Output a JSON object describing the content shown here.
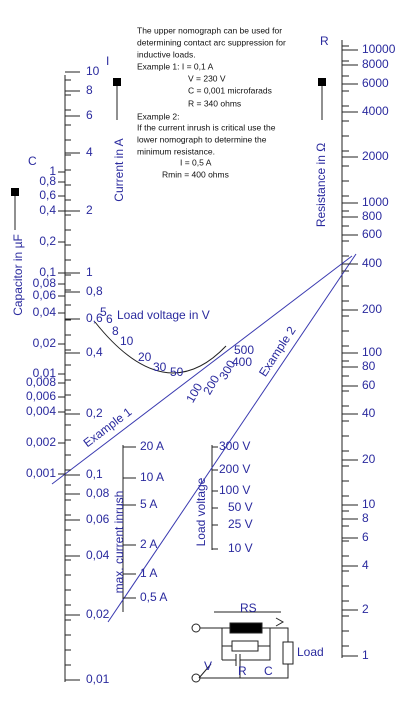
{
  "notes": [
    "The upper nomograph  can be used for",
    "determining contact arc suppression for",
    "inductive loads.",
    "Example 1:   I   =  0,1 A",
    "V  =  230 V",
    "C  =  0,001 microfarads",
    "R  =  340 ohms",
    "Example 2:",
    "If the current inrush is critical use the",
    "lower nomograph  to  determine the",
    "minimum resistance.",
    "I     =   0,5 A",
    "Rmin   =   400 ohms"
  ],
  "capacitor_scale": {
    "symbol": "C",
    "title": "Capacitor in µF",
    "labels": [
      "1",
      "0,8",
      "0,6",
      "0,4",
      "0,2",
      "0,1",
      "0,08",
      "0,06",
      "0,04",
      "0,02",
      "0,01",
      "0,008",
      "0,006",
      "0,004",
      "0,002",
      "0,001"
    ]
  },
  "current_scale": {
    "symbol": "I",
    "title": "Current in A",
    "labels": [
      "10",
      "8",
      "6",
      "4",
      "2",
      "1",
      "0,8",
      "0,6",
      "0,4",
      "0,2",
      "0,1",
      "0,08",
      "0,06",
      "0,04",
      "0,02",
      "0,01"
    ]
  },
  "resistance_scale": {
    "symbol": "R",
    "title": "Resistance in Ω",
    "labels": [
      "10000",
      "8000",
      "6000",
      "4000",
      "2000",
      "1000",
      "800",
      "600",
      "400",
      "200",
      "100",
      "80",
      "60",
      "40",
      "20",
      "10",
      "8",
      "6",
      "4",
      "2",
      "1"
    ]
  },
  "load_voltage_arc": {
    "title": "Load voltage in V",
    "labels": [
      "5",
      "6",
      "8",
      "10",
      "20",
      "30",
      "50",
      "100",
      "200",
      "300",
      "400",
      "500"
    ]
  },
  "inrush_scale": {
    "title": "max. current inrush",
    "labels": [
      "20 A",
      "10 A",
      "5 A",
      "2 A",
      "1 A",
      "0,5 A"
    ]
  },
  "load_voltage_scale": {
    "title": "Load voltage",
    "labels": [
      "300 V",
      "200 V",
      "100 V",
      "50 V",
      "25 V",
      "10 V"
    ]
  },
  "examples": [
    "Example 1",
    "Example 2"
  ],
  "circuit": {
    "rs": "RS",
    "load": "Load",
    "v": "V",
    "r": "R",
    "c": "C"
  }
}
